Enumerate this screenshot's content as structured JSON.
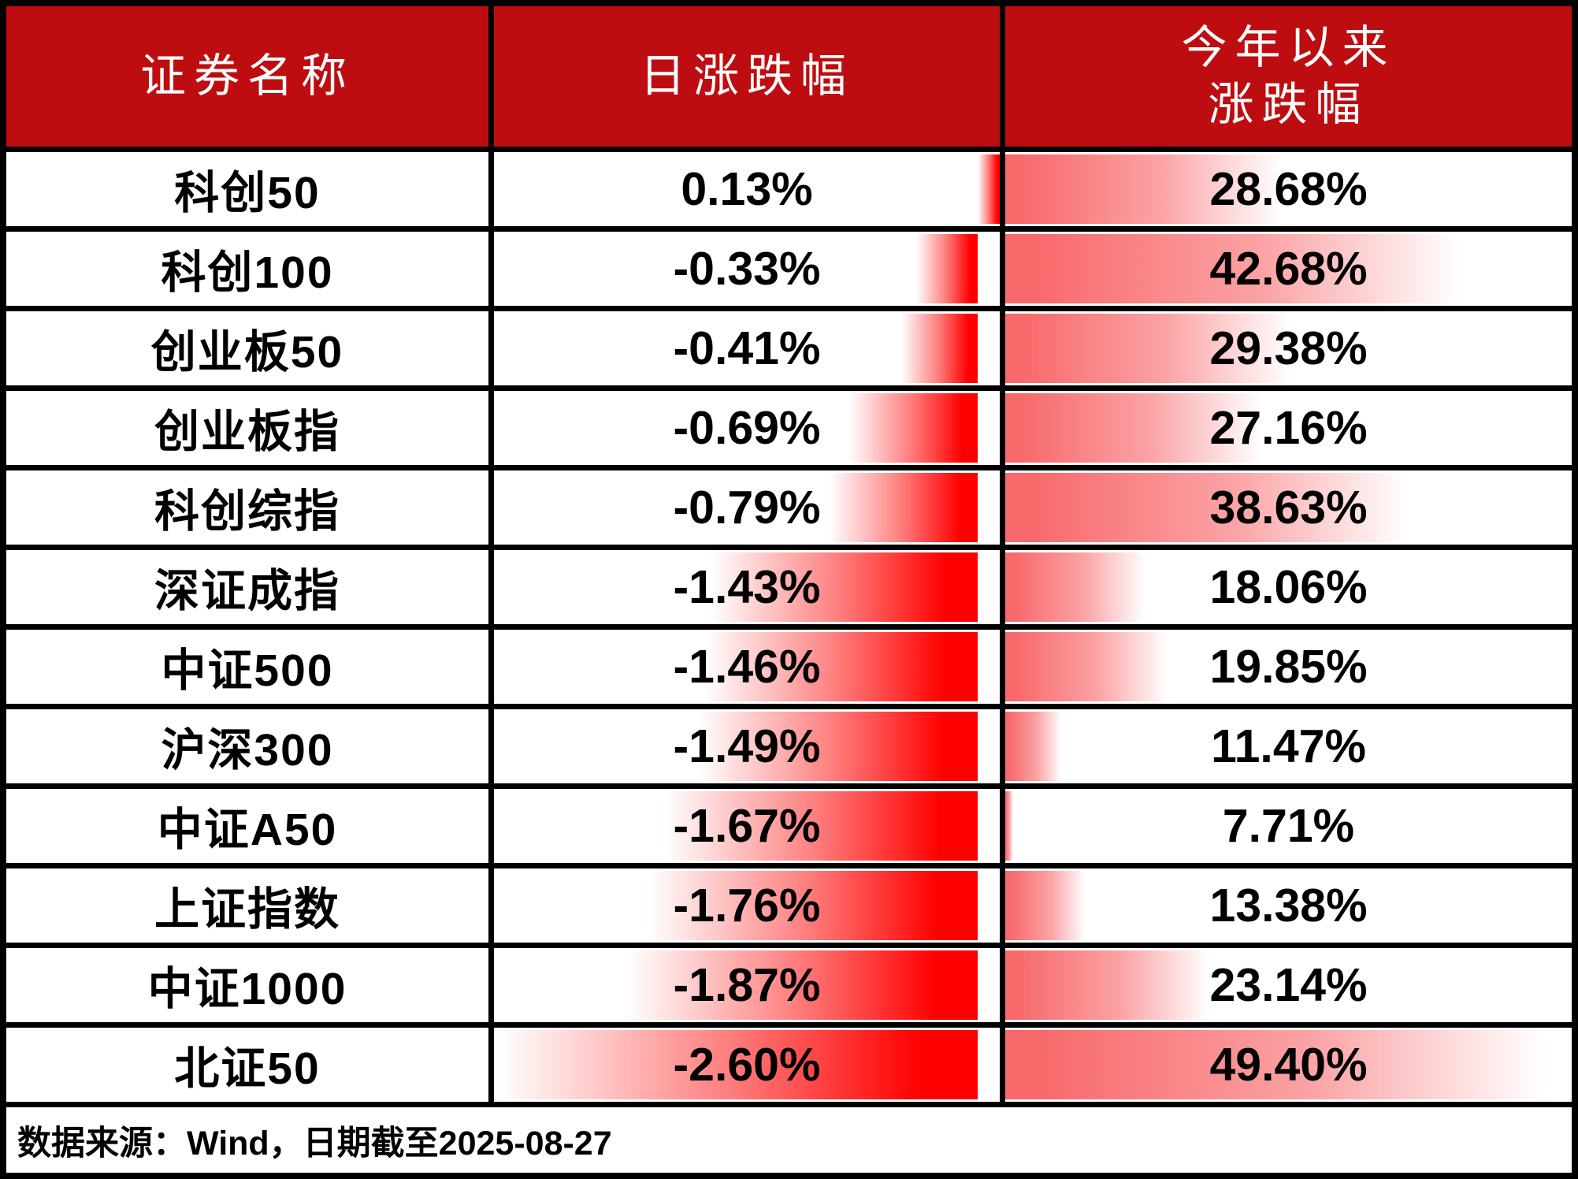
{
  "colors": {
    "header_bg": "#BE0D10",
    "header_text": "#FFFFFF",
    "daily_bar": "#FF0000",
    "ytd_bar": "#F8696B",
    "grid_border": "#000000",
    "row_bg": "#FFFFFF",
    "value_text": "#000000"
  },
  "chart_data": {
    "type": "table",
    "title": "",
    "columns": [
      "证券名称",
      "日涨跌幅",
      "今年以来涨跌幅"
    ],
    "header": {
      "col1": "证券名称",
      "col2": "日涨跌幅",
      "col3_line1": "今年以来",
      "col3_line2": "涨跌幅"
    },
    "layout_hints": {
      "daily_bars": "anchored at axis near right edge of column, negatives grow left, gradient white tip to red at axis",
      "ytd_bars": "grow rightward from left column border, gradient red to white, min-max scaled"
    },
    "rows": [
      {
        "name": "科创50",
        "daily_label": "0.13%",
        "daily": 0.13,
        "ytd_label": "28.68%",
        "ytd": 28.68
      },
      {
        "name": "科创100",
        "daily_label": "-0.33%",
        "daily": -0.33,
        "ytd_label": "42.68%",
        "ytd": 42.68
      },
      {
        "name": "创业板50",
        "daily_label": "-0.41%",
        "daily": -0.41,
        "ytd_label": "29.38%",
        "ytd": 29.38
      },
      {
        "name": "创业板指",
        "daily_label": "-0.69%",
        "daily": -0.69,
        "ytd_label": "27.16%",
        "ytd": 27.16
      },
      {
        "name": "科创综指",
        "daily_label": "-0.79%",
        "daily": -0.79,
        "ytd_label": "38.63%",
        "ytd": 38.63
      },
      {
        "name": "深证成指",
        "daily_label": "-1.43%",
        "daily": -1.43,
        "ytd_label": "18.06%",
        "ytd": 18.06
      },
      {
        "name": "中证500",
        "daily_label": "-1.46%",
        "daily": -1.46,
        "ytd_label": "19.85%",
        "ytd": 19.85
      },
      {
        "name": "沪深300",
        "daily_label": "-1.49%",
        "daily": -1.49,
        "ytd_label": "11.47%",
        "ytd": 11.47
      },
      {
        "name": "中证A50",
        "daily_label": "-1.67%",
        "daily": -1.67,
        "ytd_label": "7.71%",
        "ytd": 7.71
      },
      {
        "name": "上证指数",
        "daily_label": "-1.76%",
        "daily": -1.76,
        "ytd_label": "13.38%",
        "ytd": 13.38
      },
      {
        "name": "中证1000",
        "daily_label": "-1.87%",
        "daily": -1.87,
        "ytd_label": "23.14%",
        "ytd": 23.14
      },
      {
        "name": "北证50",
        "daily_label": "-2.60%",
        "daily": -2.6,
        "ytd_label": "49.40%",
        "ytd": 49.4
      }
    ],
    "footer_note": "数据来源：Wind，日期截至2025-08-27"
  }
}
